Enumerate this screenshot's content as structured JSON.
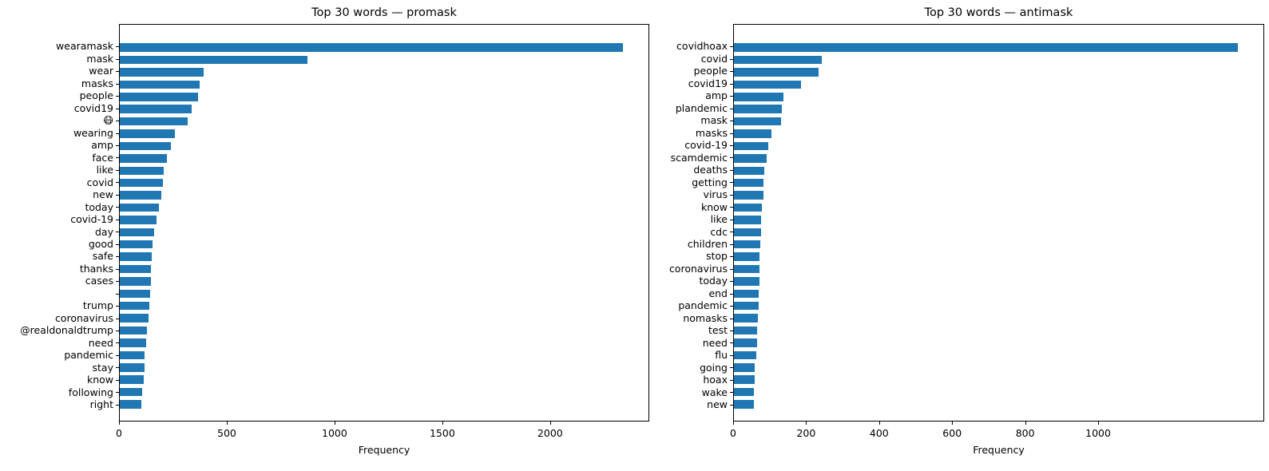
{
  "figure": {
    "background": "#ffffff",
    "bar_color": "#1f77b4",
    "spine_color": "#000000"
  },
  "chart_data": [
    {
      "type": "bar",
      "orientation": "horizontal",
      "title": "Top 30 words — promask",
      "xlabel": "Frequency",
      "xlim": [
        0,
        2460
      ],
      "xticks": [
        0,
        500,
        1000,
        1500,
        2000
      ],
      "grid": false,
      "legend": false,
      "categories": [
        "wearamask",
        "mask",
        "wear",
        "masks",
        "people",
        "covid19",
        "😷",
        "wearing",
        "amp",
        "face",
        "like",
        "covid",
        "new",
        "today",
        "covid-19",
        "day",
        "good",
        "safe",
        "thanks",
        "cases",
        "",
        "trump",
        "coronavirus",
        "@realdonaldtrump",
        "need",
        "pandemic",
        "stay",
        "know",
        "following",
        "right"
      ],
      "values": [
        2340,
        875,
        390,
        370,
        365,
        333,
        315,
        258,
        238,
        220,
        206,
        202,
        194,
        183,
        172,
        161,
        151,
        148,
        146,
        144,
        140,
        138,
        134,
        128,
        124,
        117,
        115,
        110,
        103,
        101
      ]
    },
    {
      "type": "bar",
      "orientation": "horizontal",
      "title": "Top 30 words — antimask",
      "xlabel": "Frequency",
      "xlim": [
        0,
        1455
      ],
      "xticks": [
        0,
        200,
        400,
        600,
        800,
        1000
      ],
      "grid": false,
      "legend": false,
      "categories": [
        "covidhoax",
        "covid",
        "people",
        "covid19",
        "amp",
        "plandemic",
        "mask",
        "masks",
        "covid-19",
        "scamdemic",
        "deaths",
        "getting",
        "virus",
        "know",
        "like",
        "cdc",
        "children",
        "stop",
        "coronavirus",
        "today",
        "end",
        "pandemic",
        "nomasks",
        "test",
        "need",
        "flu",
        "going",
        "hoax",
        "wake",
        "new"
      ],
      "values": [
        1385,
        242,
        233,
        185,
        137,
        132,
        129,
        104,
        95,
        91,
        84,
        82,
        81,
        76,
        75,
        75,
        73,
        71,
        70,
        70,
        69,
        68,
        66,
        64,
        63,
        62,
        57,
        56,
        55,
        54
      ]
    }
  ]
}
